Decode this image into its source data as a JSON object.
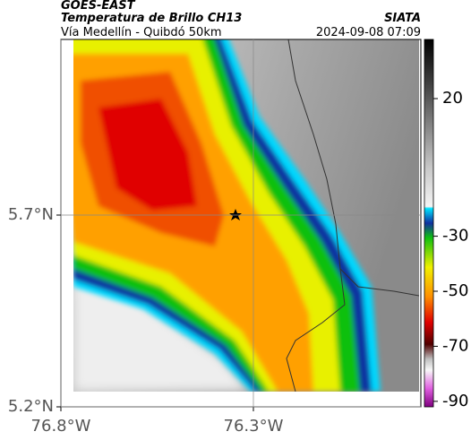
{
  "header": {
    "satellite": "GOES-EAST",
    "title": "Temperatura de Brillo CH13",
    "subtitle": "Vía Medellín - Quibdó 50km",
    "agency": "SIATA",
    "datetime": "2024-09-08 07:09"
  },
  "map": {
    "xlim": [
      -76.8,
      -75.865
    ],
    "ylim": [
      5.2,
      6.158
    ],
    "xticks": [
      {
        "value": -76.8,
        "label": "76.8°W"
      },
      {
        "value": -76.3,
        "label": "76.3°W"
      }
    ],
    "yticks": [
      {
        "value": 5.2,
        "label": "5.2°N"
      },
      {
        "value": 5.7,
        "label": "5.7°N"
      }
    ]
  },
  "colorbar": {
    "lim": [
      -92,
      41.5
    ],
    "ticks": [
      20,
      -30,
      -50,
      -70,
      -90
    ]
  }
}
